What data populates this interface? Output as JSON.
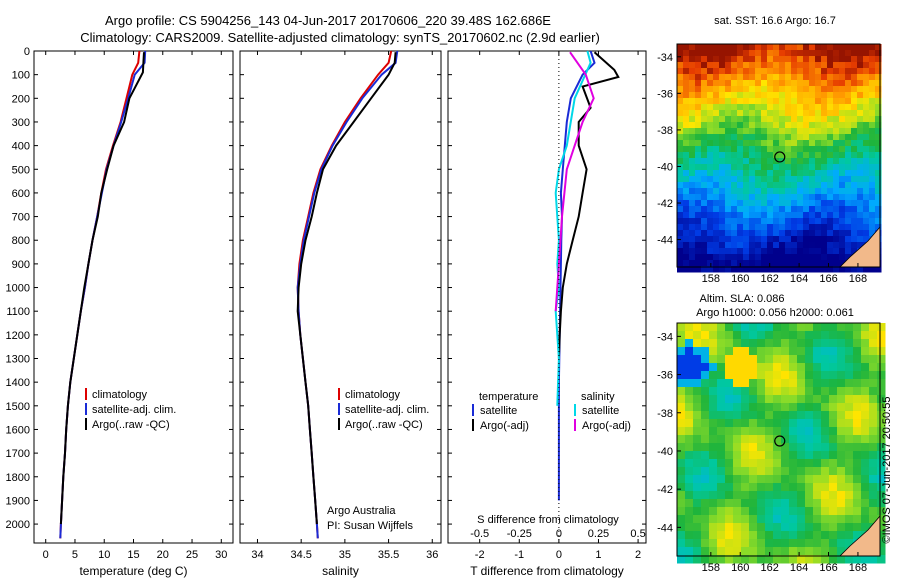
{
  "header": {
    "title_line1": "Argo profile: CS 5904256_143 04-Jun-2017 20170606_220 39.48S 162.686E",
    "title_line2": "Climatology: CARS2009. Satellite-adjusted climatology: synTS_20170602.nc (2.9d earlier)"
  },
  "side_label": "©IMOS 07-Jun-2017 20:50:55",
  "colors": {
    "climatology": "#dd0000",
    "satellite": "#1a2bd6",
    "argo": "#000000",
    "salinity_satellite": "#00d8e8",
    "salinity_argo": "#e000e0",
    "coast": "#f2b98a",
    "sst_marker": "#000000"
  },
  "chart_data": [
    {
      "type": "line",
      "panel": "temperature",
      "xlabel": "temperature (deg C)",
      "xlim": [
        -2,
        32
      ],
      "ylim": [
        2080,
        0
      ],
      "xticks": [
        0,
        5,
        10,
        15,
        20,
        25,
        30
      ],
      "yticks": [
        0,
        100,
        200,
        300,
        400,
        500,
        600,
        700,
        800,
        900,
        1000,
        1100,
        1200,
        1300,
        1400,
        1500,
        1600,
        1700,
        1800,
        1900,
        2000
      ],
      "legend": {
        "placement": "lower-middle",
        "entries": [
          "climatology",
          "satellite-adj. clim.",
          "Argo(..raw -QC)"
        ]
      },
      "series": [
        {
          "name": "climatology",
          "color": "#dd0000",
          "x": [
            16.0,
            15.8,
            14.8,
            13.8,
            12.8,
            11.5,
            10.3,
            9.5,
            8.8,
            8.0,
            7.3,
            6.7,
            6.0,
            5.4,
            4.8,
            4.2,
            3.8,
            3.5,
            3.3,
            3.0,
            2.8,
            2.6,
            2.5
          ],
          "y": [
            0,
            50,
            100,
            200,
            300,
            400,
            500,
            600,
            700,
            800,
            900,
            1000,
            1100,
            1200,
            1300,
            1400,
            1500,
            1600,
            1700,
            1800,
            1900,
            2000,
            2060
          ]
        },
        {
          "name": "satellite-adj. clim.",
          "color": "#1a2bd6",
          "x": [
            17.0,
            16.9,
            15.2,
            14.1,
            12.9,
            11.6,
            10.4,
            9.6,
            8.8,
            8.0,
            7.3,
            6.7,
            6.0,
            5.4,
            4.8,
            4.2,
            3.8,
            3.5,
            3.3,
            3.0,
            2.8,
            2.6,
            2.5
          ],
          "y": [
            0,
            50,
            100,
            200,
            300,
            400,
            500,
            600,
            700,
            800,
            900,
            1000,
            1100,
            1200,
            1300,
            1400,
            1500,
            1600,
            1700,
            1800,
            1900,
            2000,
            2060
          ]
        },
        {
          "name": "Argo(..raw -QC)",
          "color": "#000000",
          "x": [
            16.8,
            16.7,
            16.6,
            14.3,
            13.4,
            11.6,
            10.5,
            9.5,
            8.9,
            8.0,
            7.3,
            6.6,
            6.0,
            5.4,
            4.8,
            4.2,
            3.8,
            3.5,
            3.3,
            3.0,
            2.8,
            2.6
          ],
          "y": [
            5,
            50,
            90,
            200,
            300,
            400,
            500,
            600,
            700,
            800,
            900,
            1000,
            1100,
            1200,
            1300,
            1400,
            1500,
            1600,
            1700,
            1800,
            1900,
            2000
          ]
        }
      ]
    },
    {
      "type": "line",
      "panel": "salinity",
      "xlabel": "salinity",
      "xlim": [
        33.8,
        36.1
      ],
      "ylim": [
        2080,
        0
      ],
      "xticks": [
        34,
        34.5,
        35,
        35.5,
        36
      ],
      "legend": {
        "placement": "lower-middle",
        "entries": [
          "climatology",
          "satellite-adj. clim.",
          "Argo(..raw -QC)"
        ]
      },
      "annotation": [
        "Argo Australia",
        "PI: Susan Wijffels"
      ],
      "series": [
        {
          "name": "climatology",
          "color": "#dd0000",
          "x": [
            35.53,
            35.5,
            35.38,
            35.18,
            35.0,
            34.85,
            34.72,
            34.64,
            34.58,
            34.52,
            34.48,
            34.46,
            34.47,
            34.49,
            34.52,
            34.55,
            34.58,
            34.6,
            34.62,
            34.64,
            34.66,
            34.68,
            34.69
          ],
          "y": [
            0,
            50,
            100,
            200,
            300,
            400,
            500,
            600,
            700,
            800,
            900,
            1000,
            1100,
            1200,
            1300,
            1400,
            1500,
            1600,
            1700,
            1800,
            1900,
            2000,
            2060
          ]
        },
        {
          "name": "satellite-adj. clim.",
          "color": "#1a2bd6",
          "x": [
            35.6,
            35.58,
            35.42,
            35.2,
            35.02,
            34.86,
            34.73,
            34.65,
            34.59,
            34.53,
            34.49,
            34.46,
            34.47,
            34.49,
            34.52,
            34.55,
            34.58,
            34.6,
            34.62,
            34.64,
            34.66,
            34.68,
            34.69
          ],
          "y": [
            0,
            50,
            100,
            200,
            300,
            400,
            500,
            600,
            700,
            800,
            900,
            1000,
            1100,
            1200,
            1300,
            1400,
            1500,
            1600,
            1700,
            1800,
            1900,
            2000,
            2060
          ]
        },
        {
          "name": "Argo(..raw -QC)",
          "color": "#000000",
          "x": [
            35.58,
            35.57,
            35.5,
            35.3,
            35.1,
            34.9,
            34.75,
            34.68,
            34.62,
            34.55,
            34.5,
            34.47,
            34.46,
            34.49,
            34.52,
            34.55,
            34.58,
            34.6,
            34.62,
            34.64,
            34.66,
            34.68
          ],
          "y": [
            5,
            50,
            100,
            200,
            300,
            400,
            500,
            600,
            700,
            800,
            900,
            1000,
            1100,
            1200,
            1300,
            1400,
            1500,
            1600,
            1700,
            1800,
            1900,
            2000
          ]
        }
      ]
    },
    {
      "type": "line",
      "panel": "difference",
      "xlabel": "T difference from climatology",
      "top_axis_label": "S difference from climatology",
      "xlim": [
        -2.8,
        2.2
      ],
      "ylim": [
        2080,
        0
      ],
      "xticks": [
        -2,
        -1,
        0,
        1,
        2
      ],
      "xtick_labels": [
        "-2",
        "-1",
        "0",
        "1",
        "2"
      ],
      "sticks": [
        -0.5,
        -0.25,
        0,
        0.25,
        0.5
      ],
      "stick_labels": [
        "-0.5",
        "-0.25",
        "0",
        "0.25",
        "0.5"
      ],
      "legend_temperature": {
        "heading": "temperature",
        "entries": [
          "satellite",
          "Argo(-adj)"
        ]
      },
      "legend_salinity": {
        "heading": "salinity",
        "entries": [
          "satellite",
          "Argo(-adj)"
        ]
      },
      "series": [
        {
          "name": "satellite",
          "group": "temperature",
          "color": "#1a2bd6",
          "x": [
            0.8,
            0.9,
            0.6,
            0.3,
            0.2,
            0.15,
            0.1,
            0.05,
            0.08,
            0.06,
            0.05,
            0.04,
            0.03,
            0.02,
            0.01,
            0.0,
            0.0,
            0.0,
            0.0,
            0.0,
            0.0
          ],
          "y": [
            0,
            50,
            100,
            200,
            300,
            400,
            500,
            600,
            700,
            800,
            900,
            1000,
            1100,
            1200,
            1300,
            1400,
            1500,
            1600,
            1700,
            1800,
            1900
          ]
        },
        {
          "name": "Argo(-adj)",
          "group": "temperature",
          "color": "#000000",
          "x": [
            0.9,
            1.4,
            1.5,
            0.6,
            0.8,
            0.5,
            0.5,
            0.7,
            0.6,
            0.5,
            0.35,
            0.2,
            0.1,
            0.05,
            0.02,
            0.0
          ],
          "y": [
            5,
            80,
            110,
            150,
            240,
            300,
            400,
            500,
            600,
            700,
            800,
            900,
            1000,
            1100,
            1200,
            1300
          ]
        },
        {
          "name": "satellite",
          "group": "salinity",
          "color": "#00d8e8",
          "x": [
            0.18,
            0.2,
            0.1,
            0.05,
            0.0,
            -0.02,
            -0.01,
            0.0,
            -0.01,
            0.0,
            -0.02,
            0.0,
            -0.01
          ],
          "y": [
            0,
            50,
            200,
            400,
            500,
            600,
            700,
            800,
            900,
            1000,
            1100,
            1300,
            1500
          ]
        },
        {
          "name": "Argo(-adj)",
          "group": "salinity",
          "color": "#e000e0",
          "x": [
            0.07,
            0.17,
            0.22,
            0.15,
            0.1,
            0.05,
            0.02,
            0.0,
            -0.02
          ],
          "y": [
            5,
            100,
            200,
            300,
            400,
            500,
            700,
            900,
            1100
          ]
        }
      ]
    },
    {
      "type": "heatmap",
      "panel": "sst_map",
      "title": "sat. SST: 16.6 Argo: 16.7",
      "xticks": [
        158,
        160,
        162,
        164,
        166,
        168
      ],
      "yticks": [
        -34,
        -36,
        -38,
        -40,
        -42,
        -44
      ],
      "xlim": [
        155.7,
        169.5
      ],
      "ylim": [
        -45.5,
        -33.3
      ],
      "marker": {
        "lon": 162.686,
        "lat": -39.48
      }
    },
    {
      "type": "heatmap",
      "panel": "sla_map",
      "title_line1": "Altim. SLA: 0.086",
      "title_line2": "Argo h1000: 0.056 h2000: 0.061",
      "xticks": [
        158,
        160,
        162,
        164,
        166,
        168
      ],
      "yticks": [
        -34,
        -36,
        -38,
        -40,
        -42,
        -44
      ],
      "xlim": [
        155.7,
        169.5
      ],
      "ylim": [
        -45.5,
        -33.3
      ],
      "marker": {
        "lon": 162.686,
        "lat": -39.48
      }
    }
  ]
}
